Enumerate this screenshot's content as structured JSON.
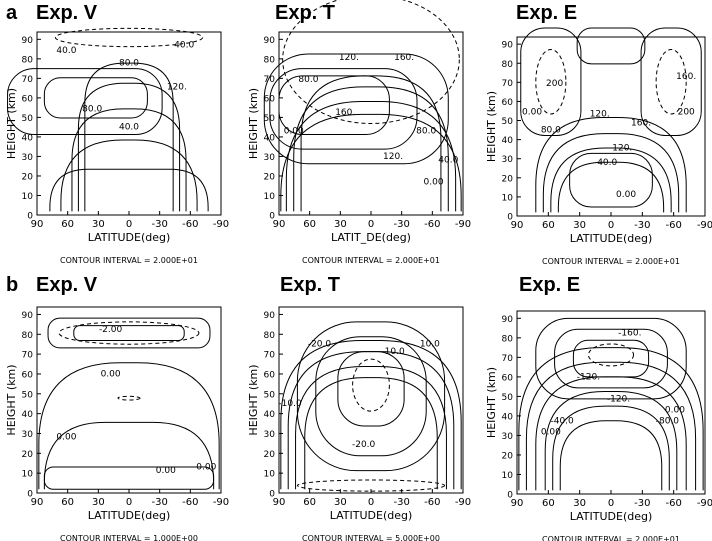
{
  "row_labels": [
    "a",
    "b"
  ],
  "axis_text": {
    "xlabel": "LATITUDE(deg)",
    "ylabel": "HEIGHT (km)",
    "x_ticks": [
      "90",
      "60",
      "30",
      "0",
      "-30",
      "-60",
      "-90"
    ],
    "y_ticks": [
      "0",
      "10",
      "20",
      "30",
      "40",
      "50",
      "60",
      "70",
      "80",
      "90"
    ]
  },
  "panels": [
    {
      "title": "Exp. V",
      "xlabel": "LATITUDE(deg)",
      "ylabel": "HEIGHT (km)",
      "interval": "CONTOUR INTERVAL = 2.000E+01",
      "labels": [
        "40.0",
        "40.0",
        "80.0",
        "120.",
        "80.0",
        "40.0"
      ]
    },
    {
      "title": "Exp. T",
      "xlabel": "LATIT_DE(deg)",
      "ylabel": "HEIGHT (km)",
      "interval": "CONTOUR INTERVAL = 2.000E+01",
      "labels": [
        "120.",
        "160.",
        "80.0",
        "160.",
        "120.",
        "80.0",
        "40.0",
        "0.00",
        "0.00"
      ]
    },
    {
      "title": "Exp. E",
      "xlabel": "LATITUDE(deg)",
      "ylabel": "HEIGHT (km)",
      "interval": "CONTOUR INTERVAL = 2.000E+01",
      "labels": [
        "200",
        "120.",
        "160.",
        "80.0",
        "0.00",
        "160.",
        "120.",
        "40.0",
        "0.00",
        "200"
      ]
    },
    {
      "title": "Exp. V",
      "xlabel": "LATITUDE(deg)",
      "ylabel": "HEIGHT (km)",
      "interval": "CONTOUR INTERVAL = 1.000E+00",
      "labels": [
        "-2.00",
        "0.00",
        "0.00",
        "0.00",
        "0.00"
      ]
    },
    {
      "title": "Exp. T",
      "xlabel": "LATITUDE(deg)",
      "ylabel": "HEIGHT (km)",
      "interval": "CONTOUR INTERVAL = 5.000E+00",
      "labels": [
        "-20.0",
        "-10.0",
        "-10.0",
        "10.0",
        "-20.0"
      ]
    },
    {
      "title": "Exp. E",
      "xlabel": "LATITUDE(deg)",
      "ylabel": "HEIGHT (km)",
      "interval": "CONTOUR INTERVAL = 2.000E+01",
      "labels": [
        "-160.",
        "-120.",
        "-40.0",
        "-120.",
        "0.00",
        "-80.0",
        "0.00"
      ]
    }
  ]
}
